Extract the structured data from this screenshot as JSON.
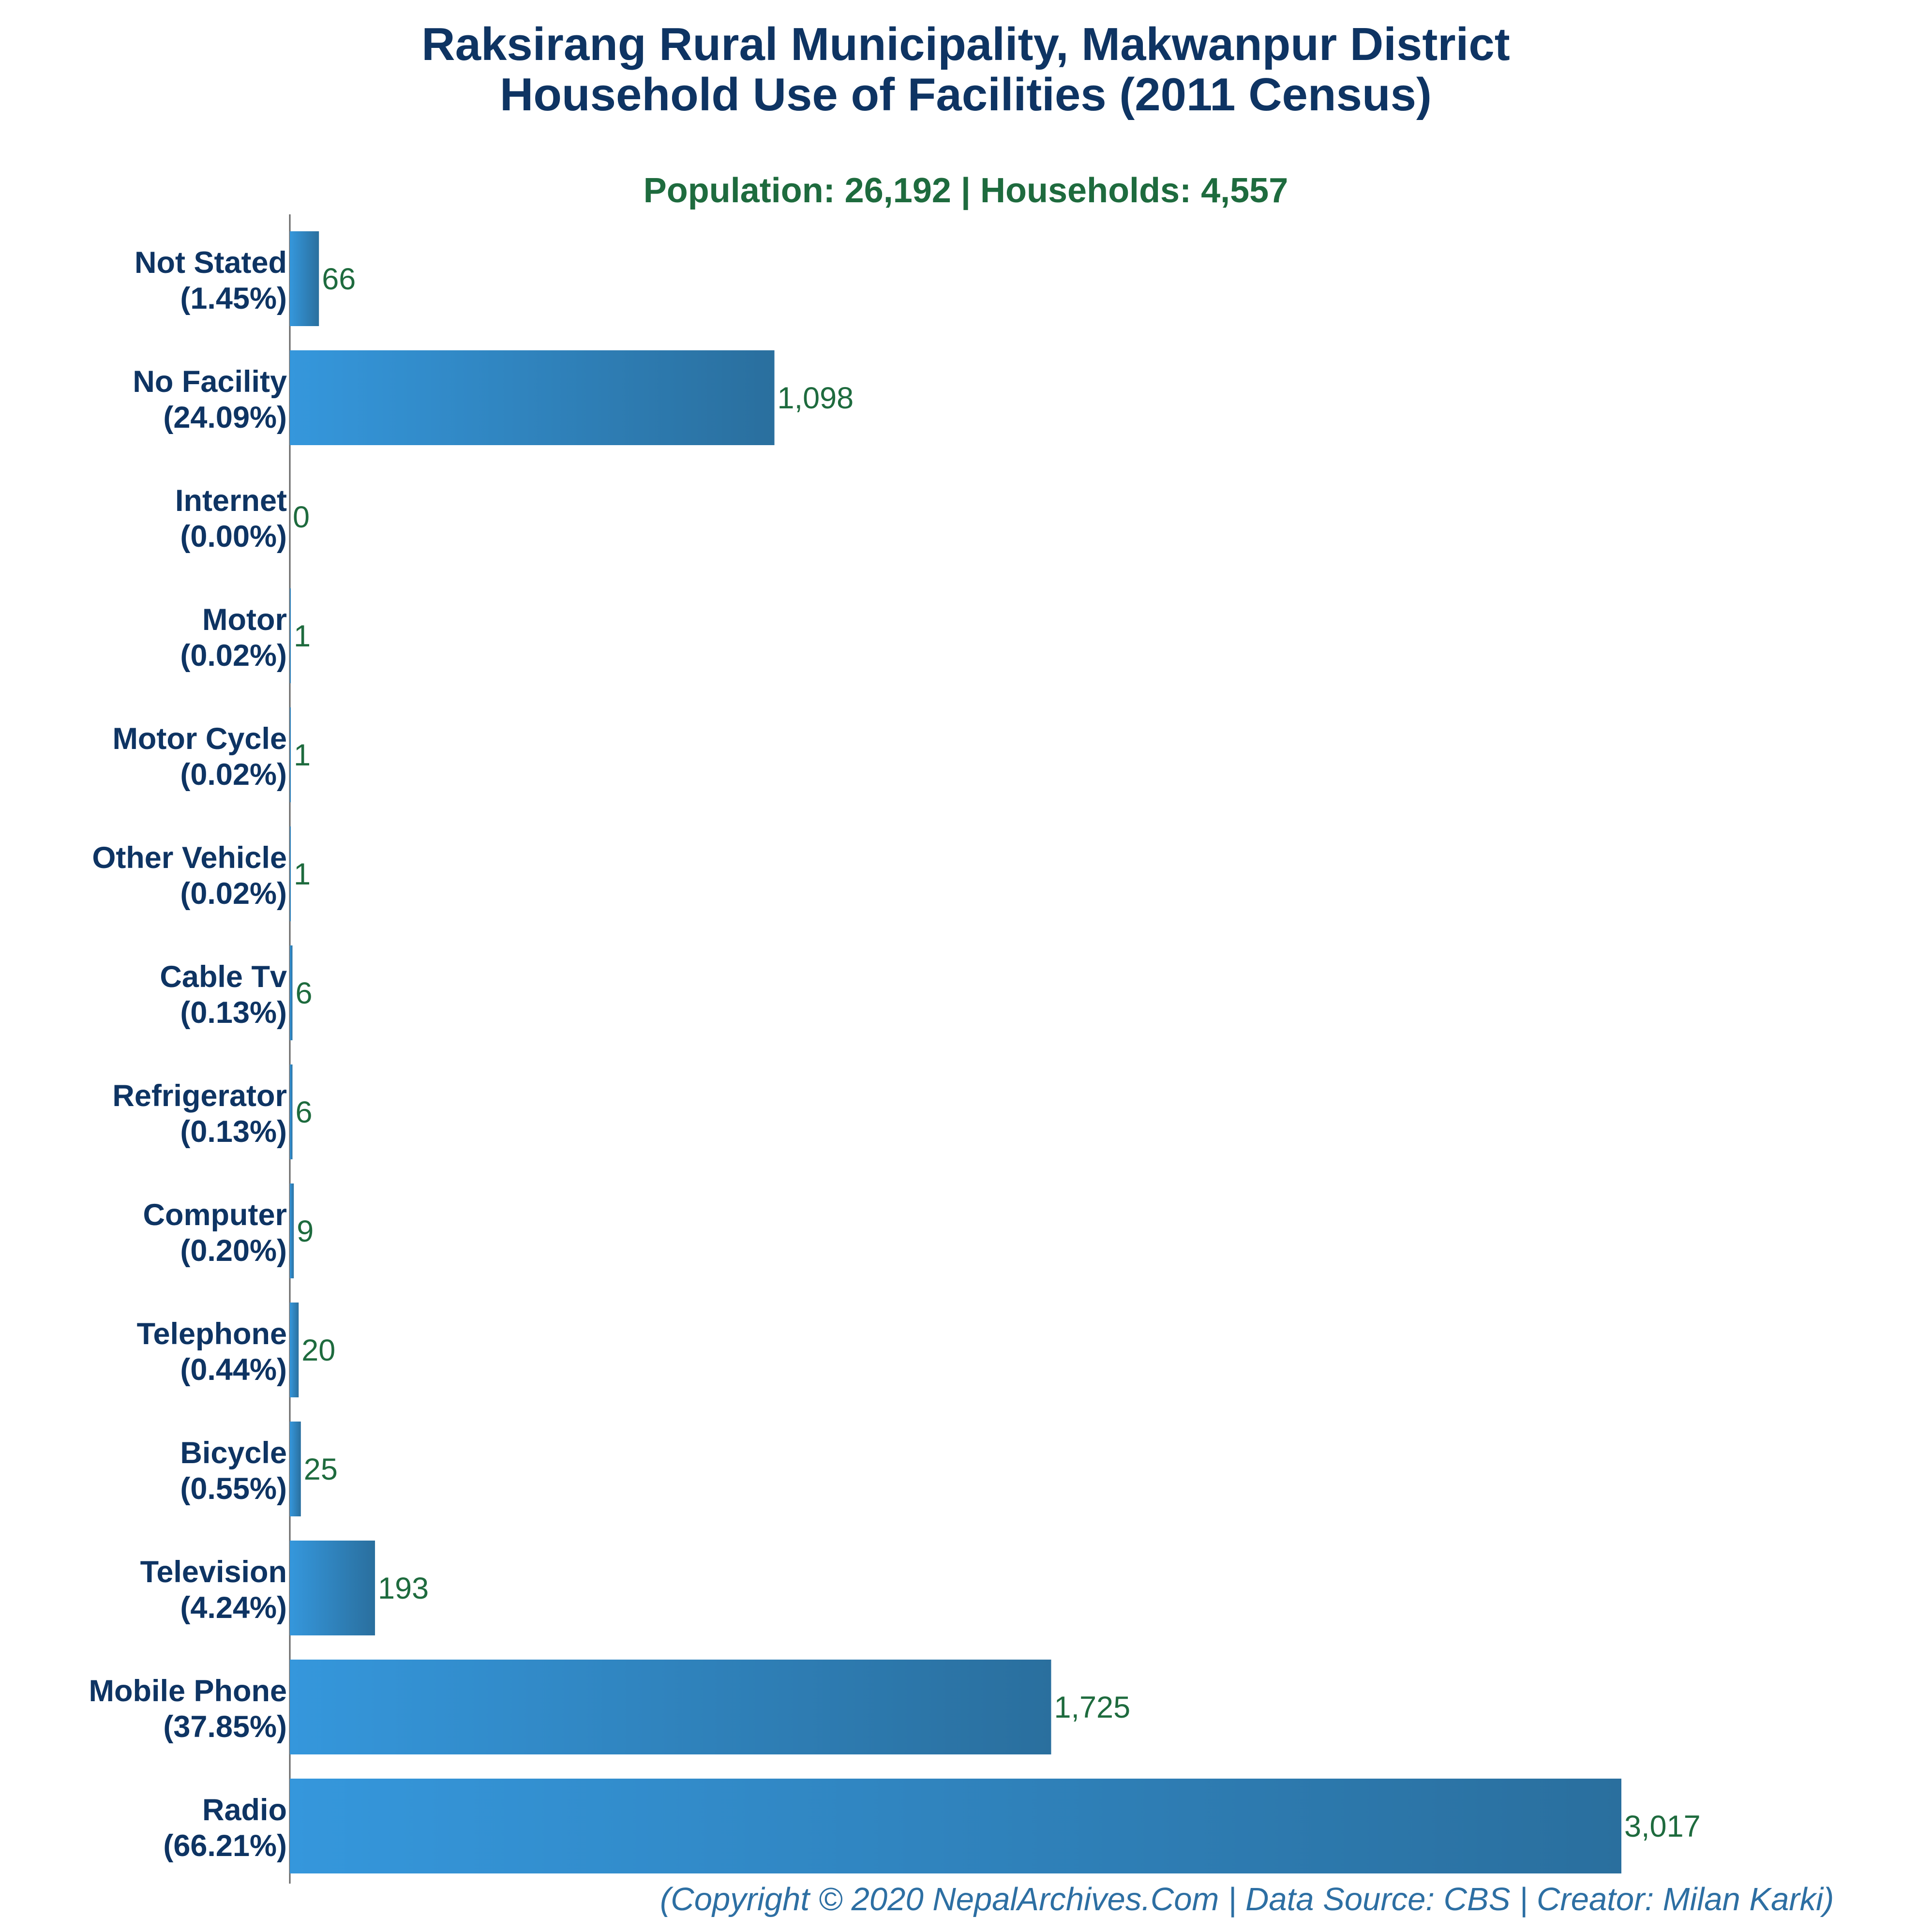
{
  "chart_data": {
    "type": "bar",
    "orientation": "horizontal",
    "title": "Raksirang Rural Municipality, Makwanpur District",
    "title_line2": "Household Use of Facilities (2011 Census)",
    "subtitle": "Population: 26,192 | Households: 4,557",
    "categories": [
      {
        "name": "Not Stated",
        "pct": "(1.45%)"
      },
      {
        "name": "No Facility",
        "pct": "(24.09%)"
      },
      {
        "name": "Internet",
        "pct": "(0.00%)"
      },
      {
        "name": "Motor",
        "pct": "(0.02%)"
      },
      {
        "name": "Motor Cycle",
        "pct": "(0.02%)"
      },
      {
        "name": "Other Vehicle",
        "pct": "(0.02%)"
      },
      {
        "name": "Cable Tv",
        "pct": "(0.13%)"
      },
      {
        "name": "Refrigerator",
        "pct": "(0.13%)"
      },
      {
        "name": "Computer",
        "pct": "(0.20%)"
      },
      {
        "name": "Telephone",
        "pct": "(0.44%)"
      },
      {
        "name": "Bicycle",
        "pct": "(0.55%)"
      },
      {
        "name": "Television",
        "pct": "(4.24%)"
      },
      {
        "name": "Mobile Phone",
        "pct": "(37.85%)"
      },
      {
        "name": "Radio",
        "pct": "(66.21%)"
      }
    ],
    "values": [
      66,
      1098,
      0,
      1,
      1,
      1,
      6,
      6,
      9,
      20,
      25,
      193,
      1725,
      3017
    ],
    "value_labels": [
      "66",
      "1,098",
      "0",
      "1",
      "1",
      "1",
      "6",
      "6",
      "9",
      "20",
      "25",
      "193",
      "1,725",
      "3,017"
    ],
    "xlim": [
      0,
      3017
    ],
    "grid": false,
    "legend": "none",
    "footer": "(Copyright © 2020 NepalArchives.Com | Data Source: CBS | Creator: Milan Karki)",
    "colors": {
      "bar_start": "#3597dc",
      "bar_end": "#2a6f9e",
      "title": "#0e3463",
      "subtitle": "#1e6b3e",
      "value_label": "#1e6b3e",
      "footer": "#2d6fa3",
      "axis": "#666666"
    }
  }
}
